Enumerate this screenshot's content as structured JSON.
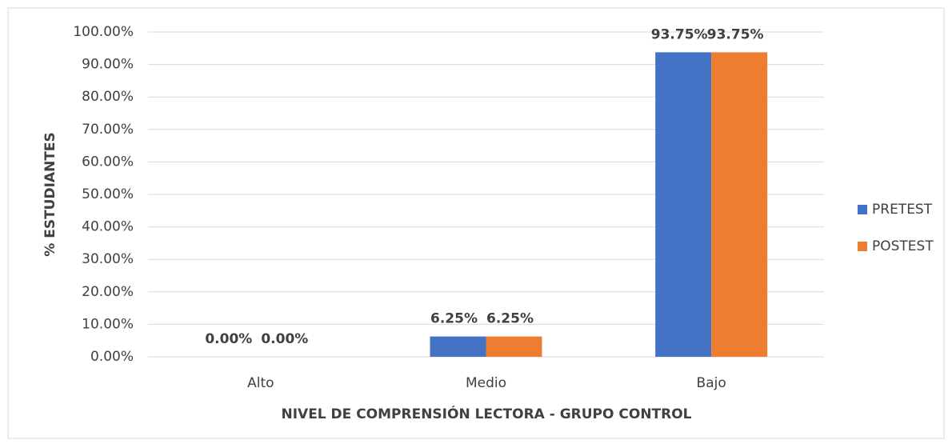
{
  "chart_data": {
    "type": "bar",
    "x_label": "NIVEL DE COMPRENSIÓN LECTORA - GRUPO CONTROL",
    "y_label": "% ESTUDIANTES",
    "categories": [
      "Alto",
      "Medio",
      "Bajo"
    ],
    "series": [
      {
        "name": "PRETEST",
        "color": "#4472c4",
        "values": [
          0,
          6.25,
          93.75
        ],
        "value_labels": [
          "0.00%",
          "6.25%",
          "93.75%"
        ]
      },
      {
        "name": "POSTEST",
        "color": "#ed7d31",
        "values": [
          0,
          6.25,
          93.75
        ],
        "value_labels": [
          "0.00%",
          "6.25%",
          "93.75%"
        ]
      }
    ],
    "ylim": [
      0,
      100
    ],
    "yticks": [
      {
        "value": 0,
        "label": "0.00%"
      },
      {
        "value": 10,
        "label": "10.00%"
      },
      {
        "value": 20,
        "label": "20.00%"
      },
      {
        "value": 30,
        "label": "30.00%"
      },
      {
        "value": 40,
        "label": "40.00%"
      },
      {
        "value": 50,
        "label": "50.00%"
      },
      {
        "value": 60,
        "label": "60.00%"
      },
      {
        "value": 70,
        "label": "70.00%"
      },
      {
        "value": 80,
        "label": "80.00%"
      },
      {
        "value": 90,
        "label": "90.00%"
      },
      {
        "value": 100,
        "label": "100.00%"
      }
    ],
    "grid": true,
    "legend": "right"
  }
}
